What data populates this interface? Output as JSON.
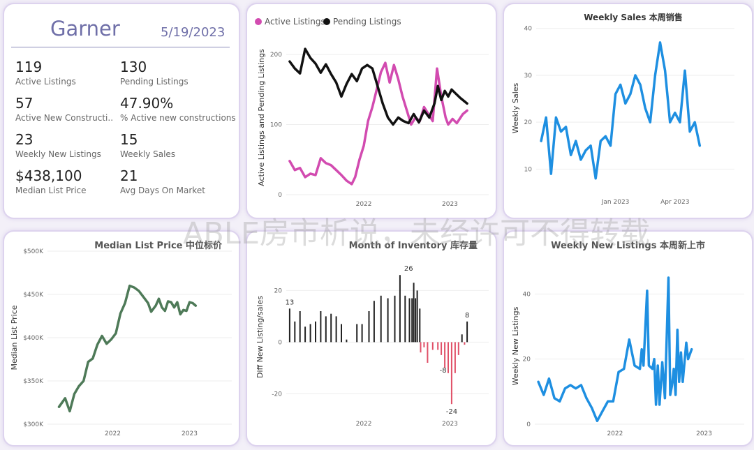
{
  "summary": {
    "city": "Garner",
    "date": "5/19/2023",
    "kpis": [
      {
        "value": "119",
        "label": "Active Listings"
      },
      {
        "value": "130",
        "label": "Pending Listings"
      },
      {
        "value": "57",
        "label": "Active New Constructi..."
      },
      {
        "value": "47.90%",
        "label": "% Active new constructions"
      },
      {
        "value": "23",
        "label": "Weekly New Listings"
      },
      {
        "value": "15",
        "label": "Weekly Sales"
      },
      {
        "value": "$438,100",
        "label": "Median List Price"
      },
      {
        "value": "21",
        "label": "Avg Days On Market"
      }
    ]
  },
  "watermark": "ABLE房市析说，未经许可不得转载",
  "colors": {
    "active": "#d24bb0",
    "pending": "#111111",
    "blue": "#1e8fe1",
    "green": "#4e7a58",
    "bar_pos": "#222222",
    "bar_neg": "#e05068"
  },
  "chart_data": [
    {
      "type": "line",
      "id": "listings",
      "title": "",
      "legend": [
        "Active Listings",
        "Pending Listings"
      ],
      "ylabel": "Active Listings and Pending Listings",
      "xlabel": "",
      "ylim": [
        0,
        220
      ],
      "yticks": [
        0,
        100,
        200
      ],
      "xticks": [
        {
          "label": "2022",
          "x": 2022.0
        },
        {
          "label": "2023",
          "x": 2023.0
        }
      ],
      "xlim": [
        2021.1,
        2023.45
      ],
      "series": [
        {
          "name": "Active Listings",
          "points": [
            [
              2021.14,
              48
            ],
            [
              2021.2,
              35
            ],
            [
              2021.26,
              38
            ],
            [
              2021.32,
              25
            ],
            [
              2021.38,
              30
            ],
            [
              2021.44,
              28
            ],
            [
              2021.5,
              52
            ],
            [
              2021.56,
              45
            ],
            [
              2021.62,
              42
            ],
            [
              2021.68,
              35
            ],
            [
              2021.74,
              28
            ],
            [
              2021.8,
              20
            ],
            [
              2021.86,
              15
            ],
            [
              2021.9,
              25
            ],
            [
              2021.95,
              50
            ],
            [
              2022.0,
              70
            ],
            [
              2022.05,
              105
            ],
            [
              2022.1,
              125
            ],
            [
              2022.15,
              150
            ],
            [
              2022.2,
              175
            ],
            [
              2022.25,
              188
            ],
            [
              2022.3,
              160
            ],
            [
              2022.35,
              185
            ],
            [
              2022.4,
              165
            ],
            [
              2022.45,
              140
            ],
            [
              2022.5,
              120
            ],
            [
              2022.55,
              100
            ],
            [
              2022.6,
              110
            ],
            [
              2022.65,
              105
            ],
            [
              2022.7,
              125
            ],
            [
              2022.75,
              115
            ],
            [
              2022.8,
              105
            ],
            [
              2022.85,
              180
            ],
            [
              2022.9,
              140
            ],
            [
              2022.95,
              110
            ],
            [
              2022.98,
              100
            ],
            [
              2023.03,
              108
            ],
            [
              2023.08,
              102
            ],
            [
              2023.15,
              115
            ],
            [
              2023.2,
              120
            ]
          ]
        },
        {
          "name": "Pending Listings",
          "points": [
            [
              2021.14,
              190
            ],
            [
              2021.2,
              180
            ],
            [
              2021.26,
              173
            ],
            [
              2021.32,
              208
            ],
            [
              2021.38,
              195
            ],
            [
              2021.44,
              187
            ],
            [
              2021.5,
              174
            ],
            [
              2021.56,
              186
            ],
            [
              2021.62,
              172
            ],
            [
              2021.68,
              160
            ],
            [
              2021.74,
              140
            ],
            [
              2021.8,
              158
            ],
            [
              2021.86,
              172
            ],
            [
              2021.92,
              162
            ],
            [
              2021.98,
              180
            ],
            [
              2022.04,
              185
            ],
            [
              2022.1,
              180
            ],
            [
              2022.16,
              155
            ],
            [
              2022.22,
              130
            ],
            [
              2022.28,
              110
            ],
            [
              2022.34,
              100
            ],
            [
              2022.4,
              110
            ],
            [
              2022.46,
              105
            ],
            [
              2022.52,
              102
            ],
            [
              2022.58,
              115
            ],
            [
              2022.64,
              103
            ],
            [
              2022.7,
              120
            ],
            [
              2022.76,
              110
            ],
            [
              2022.82,
              130
            ],
            [
              2022.86,
              155
            ],
            [
              2022.9,
              135
            ],
            [
              2022.94,
              148
            ],
            [
              2022.98,
              140
            ],
            [
              2023.02,
              150
            ],
            [
              2023.06,
              145
            ],
            [
              2023.12,
              138
            ],
            [
              2023.2,
              130
            ]
          ]
        }
      ]
    },
    {
      "type": "line",
      "id": "weekly-sales",
      "title": "Weekly Sales 本周销售",
      "ylabel": "Weekly Sales",
      "xlabel": "",
      "ylim": [
        5,
        41
      ],
      "yticks": [
        10,
        20,
        30,
        40
      ],
      "xticks": [
        {
          "label": "Jan 2023",
          "x": 16
        },
        {
          "label": "Apr 2023",
          "x": 28
        }
      ],
      "xlim": [
        0,
        40
      ],
      "series": [
        {
          "name": "Weekly Sales",
          "points": [
            [
              1,
              16
            ],
            [
              2,
              21
            ],
            [
              3,
              9
            ],
            [
              4,
              21
            ],
            [
              5,
              18
            ],
            [
              6,
              19
            ],
            [
              7,
              13
            ],
            [
              8,
              16
            ],
            [
              9,
              12
            ],
            [
              10,
              14
            ],
            [
              11,
              15
            ],
            [
              12,
              8
            ],
            [
              13,
              16
            ],
            [
              14,
              17
            ],
            [
              15,
              15
            ],
            [
              16,
              26
            ],
            [
              17,
              28
            ],
            [
              18,
              24
            ],
            [
              19,
              26
            ],
            [
              20,
              30
            ],
            [
              21,
              28
            ],
            [
              22,
              23
            ],
            [
              23,
              20
            ],
            [
              24,
              30
            ],
            [
              25,
              37
            ],
            [
              26,
              31
            ],
            [
              27,
              20
            ],
            [
              28,
              22
            ],
            [
              29,
              20
            ],
            [
              30,
              31
            ],
            [
              31,
              18
            ],
            [
              32,
              20
            ],
            [
              33,
              15
            ]
          ]
        }
      ]
    },
    {
      "type": "line",
      "id": "median-list-price",
      "title": "Median List Price  中位标价",
      "ylabel": "Median List Price",
      "xlabel": "",
      "ylim": [
        300000,
        500000
      ],
      "yticks": [
        300000,
        350000,
        400000,
        450000,
        500000
      ],
      "ytick_labels": [
        "$300K",
        "$350K",
        "$400K",
        "$450K",
        "$500K"
      ],
      "xticks": [
        {
          "label": "2022",
          "x": 2022.0
        },
        {
          "label": "2023",
          "x": 2023.0
        }
      ],
      "xlim": [
        2021.15,
        2023.55
      ],
      "series": [
        {
          "name": "Median List Price",
          "points": [
            [
              2021.3,
              320000
            ],
            [
              2021.38,
              330000
            ],
            [
              2021.44,
              315000
            ],
            [
              2021.5,
              335000
            ],
            [
              2021.56,
              344000
            ],
            [
              2021.62,
              350000
            ],
            [
              2021.68,
              372000
            ],
            [
              2021.74,
              376000
            ],
            [
              2021.8,
              392000
            ],
            [
              2021.86,
              402000
            ],
            [
              2021.92,
              393000
            ],
            [
              2021.98,
              398000
            ],
            [
              2022.04,
              405000
            ],
            [
              2022.1,
              428000
            ],
            [
              2022.16,
              440000
            ],
            [
              2022.22,
              460000
            ],
            [
              2022.28,
              458000
            ],
            [
              2022.34,
              454000
            ],
            [
              2022.4,
              447000
            ],
            [
              2022.46,
              440000
            ],
            [
              2022.5,
              430000
            ],
            [
              2022.56,
              437000
            ],
            [
              2022.6,
              445000
            ],
            [
              2022.64,
              435000
            ],
            [
              2022.68,
              431000
            ],
            [
              2022.72,
              442000
            ],
            [
              2022.76,
              441000
            ],
            [
              2022.8,
              435000
            ],
            [
              2022.84,
              441000
            ],
            [
              2022.88,
              427000
            ],
            [
              2022.92,
              432000
            ],
            [
              2022.96,
              431000
            ],
            [
              2023.0,
              441000
            ],
            [
              2023.04,
              440000
            ],
            [
              2023.08,
              437000
            ]
          ]
        }
      ]
    },
    {
      "type": "bar",
      "id": "month-of-inventory",
      "title": "Month of Inventory 库存量",
      "ylabel": "Diff New Listing/sales",
      "xlabel": "",
      "ylim": [
        -28,
        32
      ],
      "yticks": [
        -20,
        0,
        20
      ],
      "xticks": [
        {
          "label": "2022",
          "x": 2022.0
        },
        {
          "label": "2023",
          "x": 2023.0
        }
      ],
      "xlim": [
        2021.1,
        2023.45
      ],
      "data_labels": [
        {
          "x": 2021.14,
          "value": 13
        },
        {
          "x": 2022.52,
          "value": 26
        },
        {
          "x": 2022.92,
          "value": -8
        },
        {
          "x": 2023.02,
          "value": -24
        },
        {
          "x": 2023.2,
          "value": 8
        }
      ],
      "bars": [
        [
          2021.14,
          13
        ],
        [
          2021.2,
          8
        ],
        [
          2021.26,
          12
        ],
        [
          2021.32,
          6
        ],
        [
          2021.38,
          7
        ],
        [
          2021.44,
          8
        ],
        [
          2021.5,
          12
        ],
        [
          2021.56,
          10
        ],
        [
          2021.62,
          11
        ],
        [
          2021.68,
          10
        ],
        [
          2021.74,
          7
        ],
        [
          2021.8,
          1
        ],
        [
          2021.92,
          7
        ],
        [
          2021.98,
          7
        ],
        [
          2022.06,
          12
        ],
        [
          2022.12,
          16
        ],
        [
          2022.2,
          18
        ],
        [
          2022.28,
          17
        ],
        [
          2022.36,
          18
        ],
        [
          2022.42,
          26
        ],
        [
          2022.48,
          18
        ],
        [
          2022.53,
          17
        ],
        [
          2022.56,
          17
        ],
        [
          2022.58,
          23
        ],
        [
          2022.6,
          17
        ],
        [
          2022.62,
          20
        ],
        [
          2022.65,
          13
        ],
        [
          2022.66,
          -4
        ],
        [
          2022.7,
          -2
        ],
        [
          2022.74,
          -8
        ],
        [
          2022.8,
          -3
        ],
        [
          2022.86,
          -3
        ],
        [
          2022.9,
          -5
        ],
        [
          2022.94,
          -10
        ],
        [
          2022.98,
          -12
        ],
        [
          2023.02,
          -24
        ],
        [
          2023.06,
          -12
        ],
        [
          2023.1,
          -5
        ],
        [
          2023.14,
          3
        ],
        [
          2023.17,
          -1
        ],
        [
          2023.2,
          8
        ]
      ]
    },
    {
      "type": "line",
      "id": "weekly-new-listings",
      "title": "Weekly New Listings  本周新上市",
      "ylabel": "Weekly New Listings",
      "xlabel": "",
      "ylim": [
        0,
        48
      ],
      "yticks": [
        0,
        20,
        40
      ],
      "xticks": [
        {
          "label": "2022",
          "x": 2022.0
        },
        {
          "label": "2023",
          "x": 2023.0
        }
      ],
      "xlim": [
        2021.1,
        2023.45
      ],
      "series": [
        {
          "name": "Weekly New Listings",
          "points": [
            [
              2021.14,
              13
            ],
            [
              2021.2,
              9
            ],
            [
              2021.26,
              14
            ],
            [
              2021.32,
              8
            ],
            [
              2021.38,
              7
            ],
            [
              2021.44,
              11
            ],
            [
              2021.5,
              12
            ],
            [
              2021.56,
              11
            ],
            [
              2021.62,
              12
            ],
            [
              2021.68,
              8
            ],
            [
              2021.74,
              5
            ],
            [
              2021.8,
              1
            ],
            [
              2021.86,
              4
            ],
            [
              2021.92,
              7
            ],
            [
              2021.98,
              7
            ],
            [
              2022.04,
              16
            ],
            [
              2022.1,
              17
            ],
            [
              2022.16,
              26
            ],
            [
              2022.22,
              18
            ],
            [
              2022.28,
              17
            ],
            [
              2022.3,
              23
            ],
            [
              2022.32,
              18
            ],
            [
              2022.36,
              41
            ],
            [
              2022.38,
              18
            ],
            [
              2022.42,
              17
            ],
            [
              2022.44,
              20
            ],
            [
              2022.46,
              6
            ],
            [
              2022.48,
              18
            ],
            [
              2022.5,
              6
            ],
            [
              2022.53,
              19
            ],
            [
              2022.56,
              8
            ],
            [
              2022.6,
              45
            ],
            [
              2022.62,
              9
            ],
            [
              2022.64,
              12
            ],
            [
              2022.66,
              17
            ],
            [
              2022.68,
              9
            ],
            [
              2022.7,
              29
            ],
            [
              2022.72,
              13
            ],
            [
              2022.74,
              22
            ],
            [
              2022.76,
              13
            ],
            [
              2022.8,
              25
            ],
            [
              2022.82,
              20
            ],
            [
              2022.86,
              23
            ]
          ]
        }
      ]
    }
  ]
}
